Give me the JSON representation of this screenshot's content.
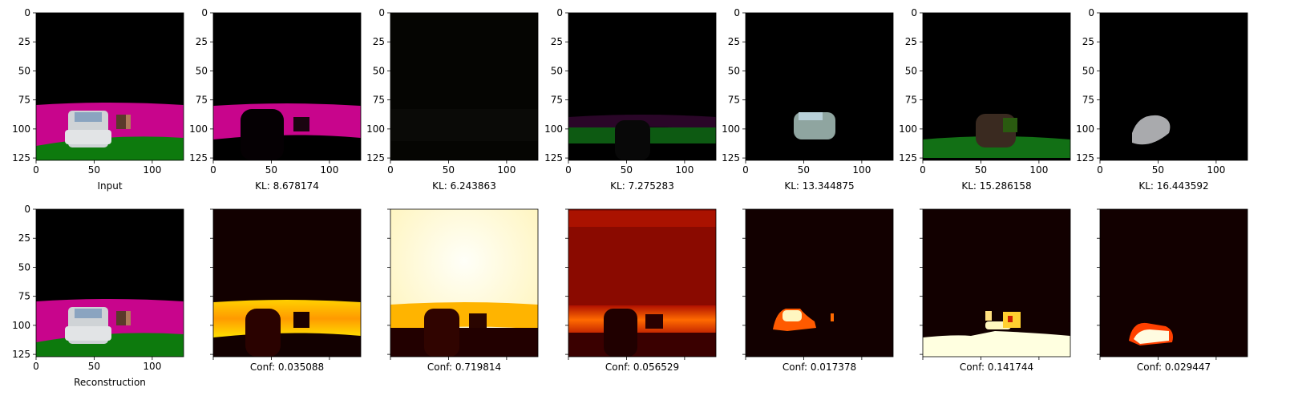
{
  "chart_data": {
    "type": "image-grid",
    "axis": {
      "xlim": [
        0,
        127
      ],
      "ylim": [
        127,
        0
      ],
      "xticks": [
        0,
        50,
        100
      ],
      "yticks": [
        0,
        25,
        50,
        75,
        100,
        125
      ]
    },
    "rows": [
      {
        "row": "top",
        "panels": [
          {
            "kind": "scene",
            "label": "Input"
          },
          {
            "kind": "scene",
            "label": "KL: 8.678174",
            "kl": 8.678174
          },
          {
            "kind": "scene",
            "label": "KL: 6.243863",
            "kl": 6.243863
          },
          {
            "kind": "scene",
            "label": "KL: 7.275283",
            "kl": 7.275283
          },
          {
            "kind": "scene",
            "label": "KL: 13.344875",
            "kl": 13.344875
          },
          {
            "kind": "scene",
            "label": "KL: 15.286158",
            "kl": 15.286158
          },
          {
            "kind": "scene",
            "label": "KL: 16.443592",
            "kl": 16.443592
          }
        ]
      },
      {
        "row": "bottom",
        "panels": [
          {
            "kind": "scene",
            "label": "Reconstruction"
          },
          {
            "kind": "heatmap",
            "label": "Conf: 0.035088",
            "conf": 0.035088
          },
          {
            "kind": "heatmap",
            "label": "Conf: 0.719814",
            "conf": 0.719814
          },
          {
            "kind": "heatmap",
            "label": "Conf: 0.056529",
            "conf": 0.056529
          },
          {
            "kind": "heatmap",
            "label": "Conf: 0.017378",
            "conf": 0.017378
          },
          {
            "kind": "heatmap",
            "label": "Conf: 0.141744",
            "conf": 0.141744
          },
          {
            "kind": "heatmap",
            "label": "Conf: 0.029447",
            "conf": 0.029447
          }
        ]
      }
    ]
  },
  "colors": {
    "background": "#ffffff",
    "sky": "#000000",
    "road": "#c8058c",
    "grass": "#0d7a0d",
    "car": "#cfd3d6",
    "hot_dark": "#120000",
    "hot_mid": "#ff5500",
    "hot_bright": "#ffffcc"
  }
}
